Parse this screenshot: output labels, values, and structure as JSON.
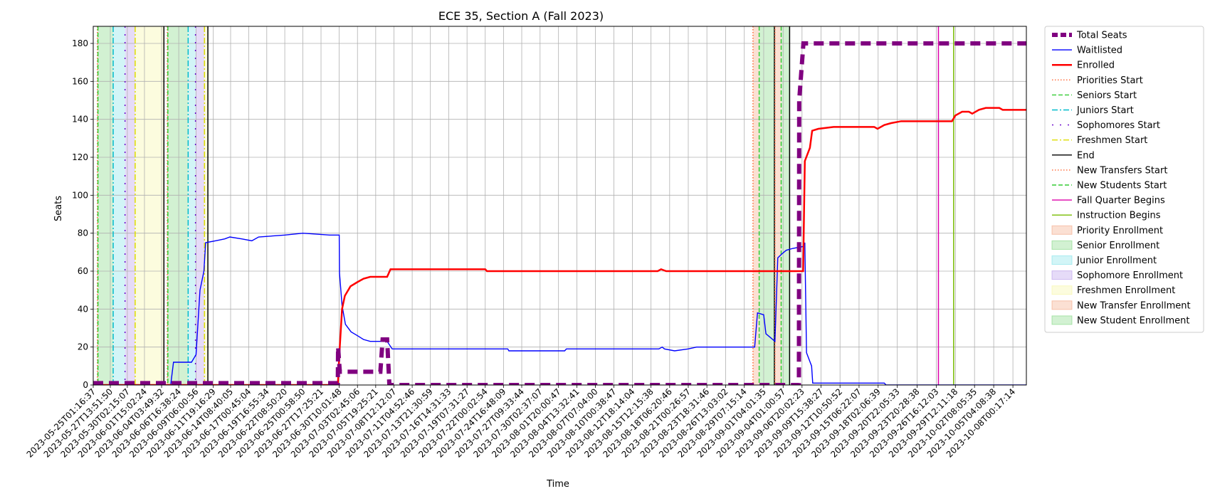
{
  "chart_data": {
    "type": "line",
    "title": "ECE 35, Section A (Fall 2023)",
    "xlabel": "Time",
    "ylabel": "Seats",
    "x_range": [
      "2023-05-25T01:16:37",
      "2023-10-10T00:00:00"
    ],
    "ylim": [
      0,
      189
    ],
    "yticks": [
      0,
      20,
      40,
      60,
      80,
      100,
      120,
      140,
      160,
      180
    ],
    "grid": true,
    "legend_position": "outside-right",
    "xtick_labels": [
      "2023-05-25T01:16:37",
      "2023-05-27T13:51:50",
      "2023-05-30T02:15:07",
      "2023-06-01T15:02:24",
      "2023-06-04T03:49:32",
      "2023-06-06T16:38:24",
      "2023-06-09T06:00:56",
      "2023-06-11T19:16:29",
      "2023-06-14T08:40:05",
      "2023-06-17T00:45:04",
      "2023-06-19T16:55:34",
      "2023-06-22T08:50:20",
      "2023-06-25T00:58:50",
      "2023-06-27T17:25:21",
      "2023-06-30T10:01:48",
      "2023-07-03T02:45:06",
      "2023-07-05T19:25:21",
      "2023-07-08T12:12:07",
      "2023-07-11T04:52:46",
      "2023-07-13T21:30:59",
      "2023-07-16T14:31:33",
      "2023-07-19T07:31:27",
      "2023-07-22T00:02:54",
      "2023-07-24T16:48:09",
      "2023-07-27T09:33:44",
      "2023-07-30T02:37:07",
      "2023-08-01T20:00:47",
      "2023-08-04T13:32:41",
      "2023-08-07T07:04:00",
      "2023-08-10T00:38:47",
      "2023-08-12T18:14:04",
      "2023-08-15T12:15:38",
      "2023-08-18T06:20:46",
      "2023-08-21T00:26:57",
      "2023-08-23T18:31:46",
      "2023-08-26T13:03:02",
      "2023-08-29T07:15:14",
      "2023-09-01T04:01:35",
      "2023-09-04T01:00:57",
      "2023-09-06T20:02:23",
      "2023-09-09T15:38:27",
      "2023-09-12T10:50:52",
      "2023-09-15T06:22:07",
      "2023-09-18T02:06:39",
      "2023-09-20T22:05:33",
      "2023-09-23T20:28:38",
      "2023-09-26T16:12:03",
      "2023-09-29T12:11:18",
      "2023-10-02T08:05:35",
      "2023-10-05T04:08:38",
      "2023-10-08T00:17:14"
    ],
    "series": [
      {
        "name": "Total Seats",
        "color": "#800080",
        "style": "dashed-thick",
        "points": [
          [
            "2023-05-25T01:16:37",
            1
          ],
          [
            "2023-06-30T05:00:00",
            1
          ],
          [
            "2023-06-30T06:00:00",
            20
          ],
          [
            "2023-06-30T12:00:00",
            7
          ],
          [
            "2023-07-06T12:00:00",
            7
          ],
          [
            "2023-07-06T20:00:00",
            24
          ],
          [
            "2023-07-07T12:00:00",
            24
          ],
          [
            "2023-07-07T20:00:00",
            0
          ],
          [
            "2023-09-06T09:00:00",
            0
          ],
          [
            "2023-09-06T10:00:00",
            150
          ],
          [
            "2023-09-07T01:00:00",
            180
          ],
          [
            "2023-10-10T00:00:00",
            180
          ]
        ]
      },
      {
        "name": "Waitlisted",
        "color": "#0000ff",
        "style": "solid",
        "points": [
          [
            "2023-05-25T01:16:37",
            0
          ],
          [
            "2023-06-05T12:00:00",
            0
          ],
          [
            "2023-06-05T22:00:00",
            12
          ],
          [
            "2023-06-08T14:00:00",
            12
          ],
          [
            "2023-06-09T06:00:00",
            16
          ],
          [
            "2023-06-09T20:00:00",
            50
          ],
          [
            "2023-06-10T10:00:00",
            60
          ],
          [
            "2023-06-10T16:00:00",
            75
          ],
          [
            "2023-06-12T04:00:00",
            76
          ],
          [
            "2023-06-13T12:00:00",
            77
          ],
          [
            "2023-06-14T06:00:00",
            78
          ],
          [
            "2023-06-16T00:00:00",
            77
          ],
          [
            "2023-06-17T12:00:00",
            76
          ],
          [
            "2023-06-18T12:00:00",
            78
          ],
          [
            "2023-06-22T08:50:20",
            79
          ],
          [
            "2023-06-25T00:58:50",
            80
          ],
          [
            "2023-06-29T00:00:00",
            79
          ],
          [
            "2023-06-30T10:01:48",
            79
          ],
          [
            "2023-06-30T11:00:00",
            59
          ],
          [
            "2023-06-30T20:00:00",
            42
          ],
          [
            "2023-07-01T08:00:00",
            32
          ],
          [
            "2023-07-02T04:00:00",
            28
          ],
          [
            "2023-07-03T02:45:06",
            26
          ],
          [
            "2023-07-04T00:00:00",
            24
          ],
          [
            "2023-07-05T00:00:00",
            23
          ],
          [
            "2023-07-07T12:00:00",
            23
          ],
          [
            "2023-07-08T06:00:00",
            19
          ],
          [
            "2023-07-25T08:00:00",
            19
          ],
          [
            "2023-07-25T12:00:00",
            18
          ],
          [
            "2023-08-02T18:00:00",
            18
          ],
          [
            "2023-08-03T00:00:00",
            19
          ],
          [
            "2023-08-16T16:00:00",
            19
          ],
          [
            "2023-08-17T04:00:00",
            20
          ],
          [
            "2023-08-17T12:00:00",
            19
          ],
          [
            "2023-08-19T00:00:00",
            18
          ],
          [
            "2023-08-21T00:00:00",
            19
          ],
          [
            "2023-08-22T06:00:00",
            20
          ],
          [
            "2023-08-30T20:00:00",
            20
          ],
          [
            "2023-08-31T06:00:00",
            38
          ],
          [
            "2023-09-01T04:00:00",
            37
          ],
          [
            "2023-09-01T12:00:00",
            27
          ],
          [
            "2023-09-02T04:00:00",
            25
          ],
          [
            "2023-09-02T20:00:00",
            23
          ],
          [
            "2023-09-03T06:00:00",
            67
          ],
          [
            "2023-09-03T20:00:00",
            69
          ],
          [
            "2023-09-04T12:00:00",
            71
          ],
          [
            "2023-09-05T12:00:00",
            72
          ],
          [
            "2023-09-07T00:00:00",
            73
          ],
          [
            "2023-09-07T06:00:00",
            75
          ],
          [
            "2023-09-07T12:00:00",
            17
          ],
          [
            "2023-09-08T06:00:00",
            10
          ],
          [
            "2023-09-08T10:00:00",
            1
          ],
          [
            "2023-09-19T00:00:00",
            1
          ],
          [
            "2023-09-19T06:00:00",
            0
          ],
          [
            "2023-10-10T00:00:00",
            0
          ]
        ]
      },
      {
        "name": "Enrolled",
        "color": "#ff0000",
        "style": "solid-thick",
        "points": [
          [
            "2023-05-25T01:16:37",
            0
          ],
          [
            "2023-06-30T05:00:00",
            0
          ],
          [
            "2023-06-30T12:00:00",
            20
          ],
          [
            "2023-06-30T20:00:00",
            40
          ],
          [
            "2023-07-01T06:00:00",
            47
          ],
          [
            "2023-07-02T02:00:00",
            52
          ],
          [
            "2023-07-03T00:00:00",
            54
          ],
          [
            "2023-07-04T00:00:00",
            56
          ],
          [
            "2023-07-05T00:00:00",
            57
          ],
          [
            "2023-07-07T12:00:00",
            57
          ],
          [
            "2023-07-08T00:00:00",
            61
          ],
          [
            "2023-07-22T00:02:54",
            61
          ],
          [
            "2023-07-22T06:00:00",
            60
          ],
          [
            "2023-08-16T12:00:00",
            60
          ],
          [
            "2023-08-17T00:00:00",
            61
          ],
          [
            "2023-08-17T18:00:00",
            60
          ],
          [
            "2023-09-07T00:00:00",
            60
          ],
          [
            "2023-09-07T06:00:00",
            118
          ],
          [
            "2023-09-08T00:00:00",
            125
          ],
          [
            "2023-09-08T08:00:00",
            134
          ],
          [
            "2023-09-09T06:00:00",
            135
          ],
          [
            "2023-09-11T12:00:00",
            136
          ],
          [
            "2023-09-17T12:00:00",
            136
          ],
          [
            "2023-09-18T00:00:00",
            135
          ],
          [
            "2023-09-19T00:00:00",
            137
          ],
          [
            "2023-09-20T00:00:00",
            138
          ],
          [
            "2023-09-21T12:00:00",
            139
          ],
          [
            "2023-09-29T00:00:00",
            139
          ],
          [
            "2023-09-29T12:00:00",
            142
          ],
          [
            "2023-09-30T12:00:00",
            144
          ],
          [
            "2023-10-01T12:00:00",
            144
          ],
          [
            "2023-10-02T00:00:00",
            143
          ],
          [
            "2023-10-03T00:00:00",
            145
          ],
          [
            "2023-10-04T00:00:00",
            146
          ],
          [
            "2023-10-06T00:00:00",
            146
          ],
          [
            "2023-10-06T12:00:00",
            145
          ],
          [
            "2023-10-10T00:00:00",
            145
          ]
        ]
      }
    ],
    "vlines": [
      {
        "name": "Priorities Start",
        "color": "#ff6633",
        "style": "dotted",
        "dates": [
          "2023-05-25T16:00:00",
          "2023-06-05T00:00:00",
          "2023-08-30T14:00:00"
        ]
      },
      {
        "name": "Seniors Start",
        "color": "#33cc33",
        "style": "dashed",
        "dates": [
          "2023-05-25T18:00:00",
          "2023-06-05T02:00:00"
        ]
      },
      {
        "name": "Juniors Start",
        "color": "#00bbcc",
        "style": "dashdot",
        "dates": [
          "2023-05-28T00:00:00",
          "2023-06-08T02:00:00"
        ]
      },
      {
        "name": "Sophomores Start",
        "color": "#6600cc",
        "style": "loosedot",
        "dates": [
          "2023-05-29T18:00:00",
          "2023-06-09T04:00:00"
        ]
      },
      {
        "name": "Freshmen Start",
        "color": "#dddd00",
        "style": "dashdot",
        "dates": [
          "2023-05-31T06:00:00",
          "2023-06-10T12:00:00"
        ]
      },
      {
        "name": "End",
        "color": "#000000",
        "style": "solid",
        "dates": [
          "2023-06-04T12:00:00",
          "2023-06-11T00:00:00",
          "2023-09-02T18:00:00",
          "2023-09-05T00:00:00"
        ]
      },
      {
        "name": "New Transfers Start",
        "color": "#ff6633",
        "style": "dotted",
        "dates": [
          "2023-09-02T20:00:00"
        ]
      },
      {
        "name": "New Students Start",
        "color": "#33cc33",
        "style": "dashed",
        "dates": [
          "2023-08-31T12:00:00",
          "2023-09-03T18:00:00"
        ]
      },
      {
        "name": "Fall Quarter Begins",
        "color": "#dd00aa",
        "style": "solid",
        "dates": [
          "2023-09-27T00:00:00"
        ]
      },
      {
        "name": "Instruction Begins",
        "color": "#77bb00",
        "style": "solid",
        "dates": [
          "2023-09-29T06:00:00"
        ]
      }
    ],
    "spans": [
      {
        "name": "Priority Enrollment",
        "color": "#f4a582",
        "ranges": [
          [
            "2023-05-25T16:00:00",
            "2023-05-25T18:00:00"
          ],
          [
            "2023-06-05T00:00:00",
            "2023-06-05T02:00:00"
          ]
        ]
      },
      {
        "name": "Senior Enrollment",
        "color": "#7fd67f",
        "ranges": [
          [
            "2023-05-25T18:00:00",
            "2023-05-28T00:00:00"
          ],
          [
            "2023-06-05T02:00:00",
            "2023-06-08T02:00:00"
          ]
        ]
      },
      {
        "name": "Junior Enrollment",
        "color": "#7fe3e8",
        "ranges": [
          [
            "2023-05-28T00:00:00",
            "2023-05-29T18:00:00"
          ],
          [
            "2023-06-08T02:00:00",
            "2023-06-09T04:00:00"
          ]
        ]
      },
      {
        "name": "Sophomore Enrollment",
        "color": "#b899ea",
        "ranges": [
          [
            "2023-05-29T18:00:00",
            "2023-05-31T06:00:00"
          ],
          [
            "2023-06-09T04:00:00",
            "2023-06-10T12:00:00"
          ]
        ]
      },
      {
        "name": "Freshmen Enrollment",
        "color": "#f5f5a0",
        "ranges": [
          [
            "2023-05-31T06:00:00",
            "2023-06-04T12:00:00"
          ],
          [
            "2023-06-10T12:00:00",
            "2023-06-11T00:00:00"
          ]
        ]
      },
      {
        "name": "New Transfer Enrollment",
        "color": "#f4a582",
        "ranges": [
          [
            "2023-08-30T14:00:00",
            "2023-08-31T12:00:00"
          ],
          [
            "2023-09-02T20:00:00",
            "2023-09-03T18:00:00"
          ]
        ]
      },
      {
        "name": "New Student Enrollment",
        "color": "#7fd67f",
        "ranges": [
          [
            "2023-08-31T12:00:00",
            "2023-09-02T18:00:00"
          ],
          [
            "2023-09-03T18:00:00",
            "2023-09-05T00:00:00"
          ]
        ]
      }
    ],
    "legend": [
      {
        "label": "Total Seats",
        "kind": "line",
        "color": "#800080",
        "style": "dashed-thick"
      },
      {
        "label": "Waitlisted",
        "kind": "line",
        "color": "#0000ff",
        "style": "solid"
      },
      {
        "label": "Enrolled",
        "kind": "line",
        "color": "#ff0000",
        "style": "solid-thick"
      },
      {
        "label": "Priorities Start",
        "kind": "line",
        "color": "#ff6633",
        "style": "dotted"
      },
      {
        "label": "Seniors Start",
        "kind": "line",
        "color": "#33cc33",
        "style": "dashed"
      },
      {
        "label": "Juniors Start",
        "kind": "line",
        "color": "#00bbcc",
        "style": "dashdot"
      },
      {
        "label": "Sophomores Start",
        "kind": "line",
        "color": "#6600cc",
        "style": "loosedot"
      },
      {
        "label": "Freshmen Start",
        "kind": "line",
        "color": "#dddd00",
        "style": "dashdot"
      },
      {
        "label": "End",
        "kind": "line",
        "color": "#000000",
        "style": "solid"
      },
      {
        "label": "New Transfers Start",
        "kind": "line",
        "color": "#ff6633",
        "style": "dotted"
      },
      {
        "label": "New Students Start",
        "kind": "line",
        "color": "#33cc33",
        "style": "dashed"
      },
      {
        "label": "Fall Quarter Begins",
        "kind": "line",
        "color": "#dd00aa",
        "style": "solid"
      },
      {
        "label": "Instruction Begins",
        "kind": "line",
        "color": "#77bb00",
        "style": "solid"
      },
      {
        "label": "Priority Enrollment",
        "kind": "patch",
        "color": "#f4a582"
      },
      {
        "label": "Senior Enrollment",
        "kind": "patch",
        "color": "#7fd67f"
      },
      {
        "label": "Junior Enrollment",
        "kind": "patch",
        "color": "#7fe3e8"
      },
      {
        "label": "Sophomore Enrollment",
        "kind": "patch",
        "color": "#b899ea"
      },
      {
        "label": "Freshmen Enrollment",
        "kind": "patch",
        "color": "#f5f5a0"
      },
      {
        "label": "New Transfer Enrollment",
        "kind": "patch",
        "color": "#f4a582"
      },
      {
        "label": "New Student Enrollment",
        "kind": "patch",
        "color": "#7fd67f"
      }
    ]
  }
}
